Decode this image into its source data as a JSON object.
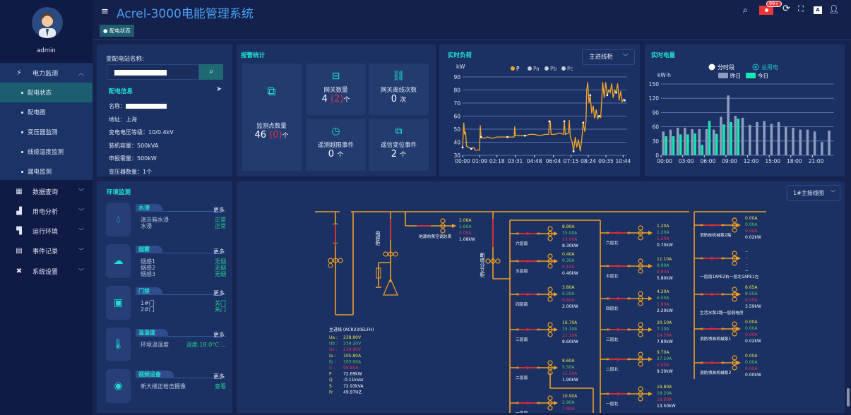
{
  "app": {
    "title": "Acrel-3000电能管理系统",
    "user": "admin",
    "notification_badge": "99+",
    "breadcrumb_tab": "配电状态"
  },
  "header_icons": [
    "search-icon",
    "bell-icon",
    "refresh-icon",
    "fullscreen-icon",
    "font-size-icon",
    "user-icon"
  ],
  "sidebar": {
    "groups": [
      {
        "label": "电力监测",
        "icon": "power-icon",
        "expanded": true,
        "items": [
          {
            "label": "配电状态",
            "active": true
          },
          {
            "label": "配电图"
          },
          {
            "label": "变压器监测"
          },
          {
            "label": "线缆温度监测"
          },
          {
            "label": "漏电监测"
          }
        ]
      },
      {
        "label": "数据查询",
        "icon": "data-icon"
      },
      {
        "label": "用电分析",
        "icon": "analysis-icon"
      },
      {
        "label": "运行环境",
        "icon": "environment-icon"
      },
      {
        "label": "事件记录",
        "icon": "event-icon"
      },
      {
        "label": "系统设置",
        "icon": "settings-icon"
      }
    ]
  },
  "station": {
    "name_label": "变配电站名称:",
    "info_title": "配电信息",
    "rows": [
      {
        "label": "名称：",
        "value": ""
      },
      {
        "label": "地址：",
        "value": "上海"
      },
      {
        "label": "变电电压等级：",
        "value": "10/0.4kV"
      },
      {
        "label": "装机容量：",
        "value": "500kVA"
      },
      {
        "label": "申报需量：",
        "value": "500kW"
      },
      {
        "label": "变压器数量：",
        "value": "1个"
      }
    ]
  },
  "alarm": {
    "title": "报警统计",
    "monitor_points": {
      "label": "监测点数量",
      "value": "46",
      "alarm": "(0)",
      "unit": "个"
    },
    "gateways": {
      "label": "网关数量",
      "value": "4",
      "alarm": "(2)",
      "unit": "个"
    },
    "gateway_offline": {
      "label": "网关离线次数",
      "value": "0",
      "unit": "次"
    },
    "telemetry_events": {
      "label": "遥测越限事件",
      "value": "0",
      "unit": "个"
    },
    "telesignal_events": {
      "label": "遥信变位事件",
      "value": "2",
      "unit": "个"
    }
  },
  "chart_data": [
    {
      "type": "line",
      "title": "实时负荷",
      "ylabel": "kW",
      "ylim": [
        30,
        90
      ],
      "yticks": [
        30,
        40,
        50,
        60,
        70,
        80,
        90
      ],
      "xticks": [
        "00:00",
        "01:09",
        "02:18",
        "03:31",
        "04:48",
        "06:04",
        "07:15",
        "08:24",
        "09:35",
        "10:44"
      ],
      "legend": [
        "P",
        "Pa",
        "Pb",
        "Pc"
      ],
      "legend_placement": "top",
      "selector": "主进线柜",
      "colors": {
        "P": "#f5a623",
        "inactive": "#c8cdd8"
      },
      "series": [
        {
          "name": "P",
          "x": [
            "00:00",
            "00:05",
            "00:08",
            "00:12",
            "00:16",
            "00:25",
            "00:35",
            "00:45",
            "00:50",
            "01:00",
            "01:08",
            "01:11",
            "01:14",
            "01:25",
            "01:40",
            "02:00",
            "02:18",
            "02:40",
            "03:00",
            "03:20",
            "03:27",
            "03:29",
            "03:32",
            "03:50",
            "04:10",
            "04:30",
            "04:48",
            "05:10",
            "05:30",
            "05:45",
            "05:48",
            "05:52",
            "05:55",
            "06:10",
            "06:30",
            "06:45",
            "06:48",
            "06:52",
            "07:05",
            "07:08",
            "07:12",
            "07:20",
            "07:25",
            "07:32",
            "07:38",
            "07:45",
            "07:52",
            "07:58",
            "08:04",
            "08:10",
            "08:15",
            "08:18",
            "08:22",
            "08:27",
            "08:32",
            "08:38",
            "08:44",
            "08:50",
            "08:56",
            "09:02",
            "09:08",
            "09:14",
            "09:18",
            "09:22",
            "09:28",
            "09:34",
            "09:40",
            "09:46",
            "09:52",
            "09:58",
            "10:04",
            "10:10",
            "10:16",
            "10:22",
            "10:28",
            "10:34",
            "10:40",
            "10:46",
            "10:50"
          ],
          "y": [
            36,
            55,
            46,
            48,
            37,
            36,
            35,
            36,
            34,
            34,
            34,
            53,
            44,
            43,
            44,
            43,
            44,
            44,
            44,
            44,
            44,
            52,
            45,
            45,
            45,
            46,
            46,
            45,
            46,
            46,
            56,
            56,
            46,
            46,
            47,
            46,
            56,
            46,
            47,
            57,
            44,
            40,
            33,
            44,
            36,
            42,
            33,
            42,
            55,
            48,
            56,
            80,
            86,
            70,
            76,
            62,
            68,
            58,
            65,
            58,
            60,
            59,
            72,
            86,
            74,
            86,
            76,
            80,
            78,
            85,
            74,
            80,
            78,
            85,
            72,
            79,
            71,
            73,
            72
          ]
        }
      ]
    },
    {
      "type": "bar",
      "title": "实时电量",
      "ylabel": "kW·h",
      "ylim": [
        0,
        150
      ],
      "yticks": [
        0,
        30,
        60,
        90,
        120,
        150
      ],
      "xticks": [
        "00:00",
        "03:00",
        "06:00",
        "09:00",
        "12:00",
        "15:00",
        "18:00",
        "21:00"
      ],
      "radio_options": [
        {
          "label": "分时段",
          "selected": false
        },
        {
          "label": "总用电",
          "selected": true
        }
      ],
      "legend_placement": "top",
      "colors": {
        "昨日": "#8d9dbd",
        "今日": "#17e8b0"
      },
      "categories": [
        "0",
        "1",
        "2",
        "3",
        "4",
        "5",
        "6",
        "7",
        "8",
        "9",
        "10",
        "11",
        "12",
        "13",
        "14",
        "15",
        "16",
        "17",
        "18",
        "19",
        "20",
        "21",
        "22",
        "23"
      ],
      "series": [
        {
          "name": "昨日",
          "values": [
            50,
            54,
            58,
            58,
            55,
            55,
            55,
            54,
            81,
            126,
            83,
            79,
            64,
            70,
            72,
            66,
            70,
            60,
            58,
            54,
            54,
            50,
            28,
            52
          ]
        },
        {
          "name": "今日",
          "values": [
            40,
            40,
            44,
            44,
            46,
            22,
            72,
            45,
            65,
            70,
            77,
            null,
            null,
            null,
            null,
            null,
            null,
            null,
            null,
            null,
            null,
            null,
            null,
            null
          ]
        }
      ]
    }
  ],
  "env": {
    "title": "环境监测",
    "more_label": "更多",
    "sections": [
      {
        "title": "水浸",
        "icon": "water-drop-icon",
        "rows": [
          {
            "name": "演示箱水浸",
            "status": "正常"
          },
          {
            "name": "水浸",
            "status": "正常"
          }
        ]
      },
      {
        "title": "烟雾",
        "icon": "smoke-icon",
        "rows": [
          {
            "name": "烟感1",
            "status": "无烟"
          },
          {
            "name": "烟感2",
            "status": "无烟"
          },
          {
            "name": "烟感3",
            "status": "无烟"
          }
        ]
      },
      {
        "title": "门禁",
        "icon": "door-access-icon",
        "rows": [
          {
            "name": "1#门",
            "status": "关门"
          },
          {
            "name": "2#门",
            "status": "关门"
          }
        ]
      },
      {
        "title": "温湿度",
        "icon": "thermometer-icon",
        "rows": [
          {
            "name": "环境温湿度",
            "status": "温度:18.0°C ..."
          }
        ]
      },
      {
        "title": "视频设备",
        "icon": "camera-icon",
        "rows": [
          {
            "name": "新大楼正枪击摄像",
            "status": "查看"
          }
        ]
      }
    ]
  },
  "diagram": {
    "selector": "1#主接线图",
    "capacitor_label": "电容柜",
    "split_cabinet_label": "断增分立柜",
    "colors": {
      "bus": "#f0a020",
      "energized": "#e0203a",
      "ia": "#e8e84a",
      "ib": "#5cc86a",
      "ic": "#e0305a",
      "p": "#ffffff"
    },
    "main_incoming": {
      "title": "主进线  (ACR230ELFH)",
      "rows": [
        {
          "k": "Ua :",
          "v": "238.80V",
          "c": "ia"
        },
        {
          "k": "Ub :",
          "v": "239.20V",
          "c": "ib"
        },
        {
          "k": "Uc :",
          "v": "239.90V",
          "c": "ic"
        },
        {
          "k": "Ia  :",
          "v": "105.80A",
          "c": "ia"
        },
        {
          "k": "Ib  :",
          "v": "103.00A",
          "c": "ib"
        },
        {
          "k": "Ic  :",
          "v": "99.80A",
          "c": "ic"
        },
        {
          "k": "P",
          "v": "72.69kW",
          "c": "ia"
        },
        {
          "k": "Q",
          "v": "-0.11kVar",
          "c": "ia"
        },
        {
          "k": "S",
          "v": "72.93kVA",
          "c": "ia"
        },
        {
          "k": "Fr",
          "v": "49.97HZ",
          "c": "ia"
        }
      ]
    },
    "hvac_meter": {
      "label": "地源热泵空调总表",
      "values": [
        "2.08A",
        "1.60A",
        "0.00A",
        "1.08kW"
      ]
    },
    "south_feeders": [
      {
        "label": "六层南",
        "values": [
          "8.90A",
          "15.00A",
          "13.90A",
          "8.30kW"
        ]
      },
      {
        "label": "五层南",
        "values": [
          "0.40A",
          "0.30A",
          "0.10A",
          "0.40kW"
        ]
      },
      {
        "label": "四层南",
        "values": [
          "3.80A",
          "0.30A",
          "6.80A",
          "2.00kW"
        ]
      },
      {
        "label": "三层南",
        "values": [
          "16.70A",
          "15.10A",
          "11.10A",
          "8.60kW"
        ]
      },
      {
        "label": "二层南",
        "values": [
          "8.60A",
          "5.50A",
          "11.10A",
          "1.90kW"
        ]
      },
      {
        "label": "一层南",
        "values": [
          "10.90A",
          "2.90A",
          "7.80A",
          ""
        ]
      }
    ],
    "north_feeders": [
      {
        "label": "六层北",
        "values": [
          "1.20A",
          "1.20A",
          "1.20A",
          "0.70kW"
        ]
      },
      {
        "label": "五层北",
        "values": [
          "11.10A",
          "9.90A",
          "9.90A",
          "5.80kW"
        ]
      },
      {
        "label": "四层北",
        "values": [
          "4.20A",
          "6.50A",
          "1.80A",
          "2.20kW"
        ]
      },
      {
        "label": "三层北",
        "values": [
          "20.50A",
          "7.10A",
          "14.50A",
          "7.80kW"
        ]
      },
      {
        "label": "二层北",
        "values": [
          "9.70A",
          "27.50A",
          "4.80A",
          "9.30kW"
        ]
      },
      {
        "label": "一层北",
        "values": [
          "19.80A",
          "18.20A",
          "19.80A",
          "13.50kW"
        ]
      }
    ],
    "other_feeders": [
      {
        "label": "消防栓机械泵2路",
        "values": [
          "0.00A",
          "0.00A",
          "0.00A",
          "0.02kW"
        ]
      },
      {
        "label": "一层南1APE2右一层北1APE1左",
        "values": [
          "--",
          "--",
          "--",
          "--"
        ]
      },
      {
        "label": "生活水泵2路一层弱电房",
        "values": [
          "8.65A",
          "8.55A",
          "8.05A",
          "3.59kW"
        ]
      },
      {
        "label": "消防喷淋机械泵1",
        "values": [
          "0.00A",
          "0.00A",
          "0.00A",
          "0.02kW"
        ]
      },
      {
        "label": "消防喷淋机械泵2",
        "values": [
          "0.00A",
          "0.00A",
          "0.00A",
          "0.00kW"
        ]
      }
    ]
  }
}
